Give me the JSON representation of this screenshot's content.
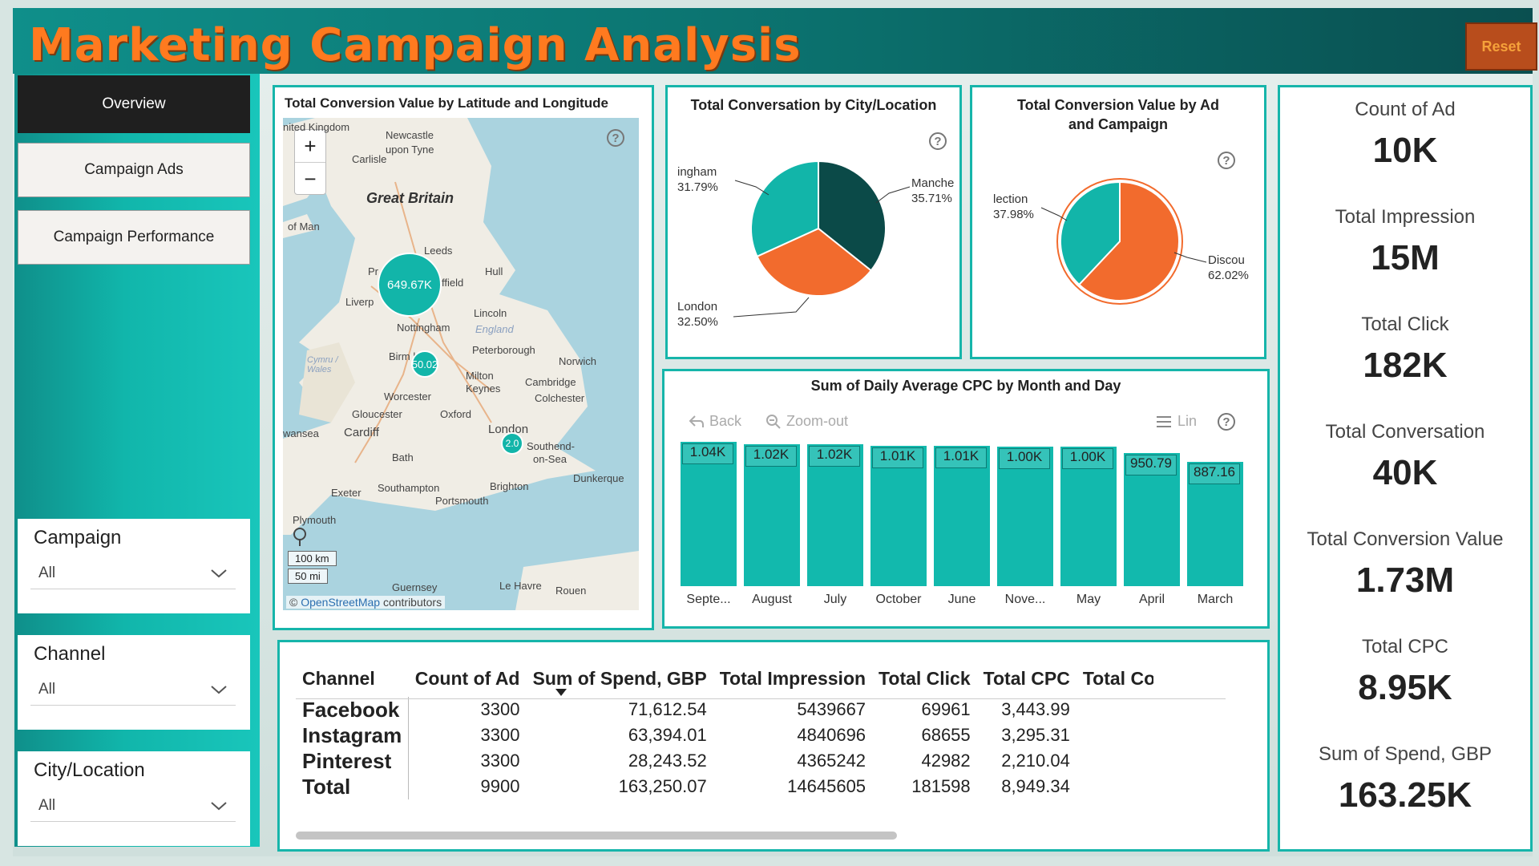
{
  "header": {
    "title": "Marketing Campaign Analysis",
    "reset_label": "Reset"
  },
  "nav": {
    "overview": "Overview",
    "campaign_ads": "Campaign Ads",
    "campaign_performance": "Campaign Performance"
  },
  "slicers": {
    "campaign": {
      "label": "Campaign",
      "value": "All"
    },
    "channel": {
      "label": "Channel",
      "value": "All"
    },
    "city": {
      "label": "City/Location",
      "value": "All"
    }
  },
  "map": {
    "title": "Total Conversion Value by Latitude and Longitude",
    "labels": {
      "kingdom": "nited Kingdom",
      "newcastle": "Newcastle",
      "upon_tyne": "upon Tyne",
      "carlisle": "Carlisle",
      "great_britain": "Great Britain",
      "isle_of_man": "of Man",
      "leeds": "Leeds",
      "hull": "Hull",
      "liverpool": "Liverp",
      "sheffield": "ffield",
      "lincoln": "Lincoln",
      "nottingham": "Nottingham",
      "england": "England",
      "birmingham": "Birm    ham",
      "peterborough": "Peterborough",
      "norwich": "Norwich",
      "wales": "Cymru / Wales",
      "milton": "Milton",
      "keynes": "Keynes",
      "cambridge": "Cambridge",
      "worcester": "Worcester",
      "colchester": "Colchester",
      "gloucester": "Gloucester",
      "oxford": "Oxford",
      "london": "London",
      "swansea": "wansea",
      "cardiff": "Cardiff",
      "southend": "Southend-",
      "on_sea": "on-Sea",
      "bath": "Bath",
      "dunkerque": "Dunkerque",
      "brighton": "Brighton",
      "exeter": "Exeter",
      "southampton": "Southampton",
      "portsmouth": "Portsmouth",
      "plymouth": "Plymouth",
      "guernsey": "Guernsey",
      "le_havre": "Le Havre",
      "rouen": "Rouen",
      "pr": "Pr"
    },
    "bubbles": {
      "manchester": "649.67K",
      "birmingham": "50.02",
      "london": "2.0"
    },
    "scale_km": "100 km",
    "scale_mi": "50 mi",
    "attribution_link": "OpenStreetMap",
    "attribution_text": " contributors"
  },
  "pie1": {
    "title": "Total Conversation by City/Location",
    "slices": [
      {
        "name": "ingham",
        "pct": "31.79%"
      },
      {
        "name": "Manche",
        "pct": "35.71%"
      },
      {
        "name": "London",
        "pct": "32.50%"
      }
    ]
  },
  "pie2": {
    "title_line1": "Total Conversion Value by Ad",
    "title_line2": "and Campaign",
    "slices": [
      {
        "name": "lection",
        "pct": "37.98%"
      },
      {
        "name": "Discou",
        "pct": "62.02%"
      }
    ]
  },
  "barchart": {
    "title": "Sum of Daily Average CPC by Month and Day",
    "back": "Back",
    "zoom_out": "Zoom-out",
    "lin": "Lin"
  },
  "chart_data": [
    {
      "type": "bar",
      "title": "Sum of Daily Average CPC by Month and Day",
      "categories": [
        "Septe...",
        "August",
        "July",
        "October",
        "June",
        "Nove...",
        "May",
        "April",
        "March"
      ],
      "values": [
        1040,
        1020,
        1020,
        1010,
        1010,
        1000,
        1000,
        950.79,
        887.16
      ],
      "labels": [
        "1.04K",
        "1.02K",
        "1.02K",
        "1.01K",
        "1.01K",
        "1.00K",
        "1.00K",
        "950.79",
        "887.16"
      ]
    },
    {
      "type": "pie",
      "title": "Total Conversation by City/Location",
      "categories": [
        "ingham",
        "Manche",
        "London"
      ],
      "values": [
        31.79,
        35.71,
        32.5
      ],
      "colors": [
        "#12b5a9",
        "#0b4a48",
        "#f26b2d"
      ]
    },
    {
      "type": "pie",
      "title": "Total Conversion Value by Ad and Campaign",
      "categories": [
        "lection",
        "Discou"
      ],
      "values": [
        37.98,
        62.02
      ],
      "colors": [
        "#12b5a9",
        "#f26b2d"
      ]
    }
  ],
  "table": {
    "headers": [
      "Channel",
      "Count of Ad",
      "Sum of Spend, GBP",
      "Total Impression",
      "Total Click",
      "Total CPC",
      "Total Co"
    ],
    "rows": [
      [
        "Facebook",
        "3300",
        "71,612.54",
        "5439667",
        "69961",
        "3,443.99"
      ],
      [
        "Instagram",
        "3300",
        "63,394.01",
        "4840696",
        "68655",
        "3,295.31"
      ],
      [
        "Pinterest",
        "3300",
        "28,243.52",
        "4365242",
        "42982",
        "2,210.04"
      ],
      [
        "Total",
        "9900",
        "163,250.07",
        "14645605",
        "181598",
        "8,949.34"
      ]
    ]
  },
  "kpis": [
    {
      "label": "Count of Ad",
      "value": "10K"
    },
    {
      "label": "Total Impression",
      "value": "15M"
    },
    {
      "label": "Total Click",
      "value": "182K"
    },
    {
      "label": "Total Conversation",
      "value": "40K"
    },
    {
      "label": "Total Conversion Value",
      "value": "1.73M"
    },
    {
      "label": "Total CPC",
      "value": "8.95K"
    },
    {
      "label": "Sum of Spend, GBP",
      "value": "163.25K"
    }
  ],
  "colors": {
    "teal": "#12b5a9",
    "dark_teal": "#0b4a48",
    "orange": "#f26b2d",
    "title_orange": "#ff7a1f"
  }
}
